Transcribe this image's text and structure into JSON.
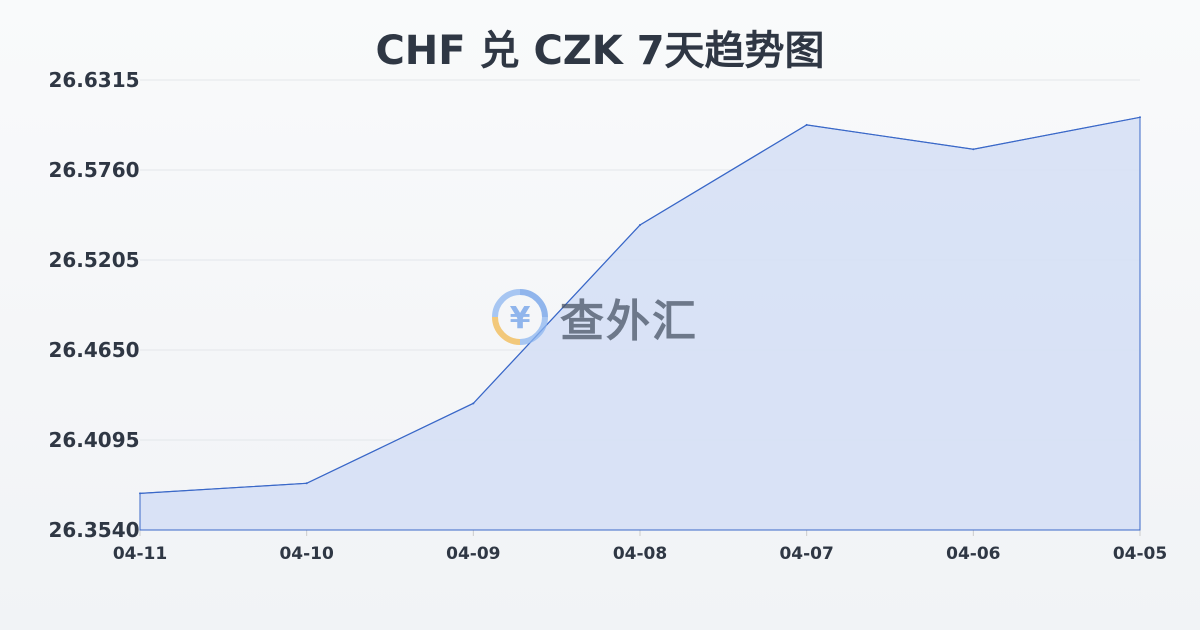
{
  "chart_data": {
    "type": "area",
    "title": "CHF 兑 CZK 7天趋势图",
    "categories": [
      "04-11",
      "04-10",
      "04-09",
      "04-08",
      "04-07",
      "04-06",
      "04-05"
    ],
    "series": [
      {
        "values": [
          26.3766,
          26.3828,
          26.4321,
          26.5421,
          26.6038,
          26.5888,
          26.6085
        ]
      }
    ],
    "yticks": [
      "26.3540",
      "26.4095",
      "26.4650",
      "26.5205",
      "26.5760",
      "26.6315"
    ],
    "ylim": [
      26.354,
      26.6315
    ],
    "xlabel": "",
    "ylabel": "",
    "grid": true,
    "colors": {
      "line": "#3a68c8",
      "fill": "#d6e0f5"
    }
  },
  "watermark": {
    "text": "查外汇",
    "icon": "yen-exchange-icon"
  }
}
